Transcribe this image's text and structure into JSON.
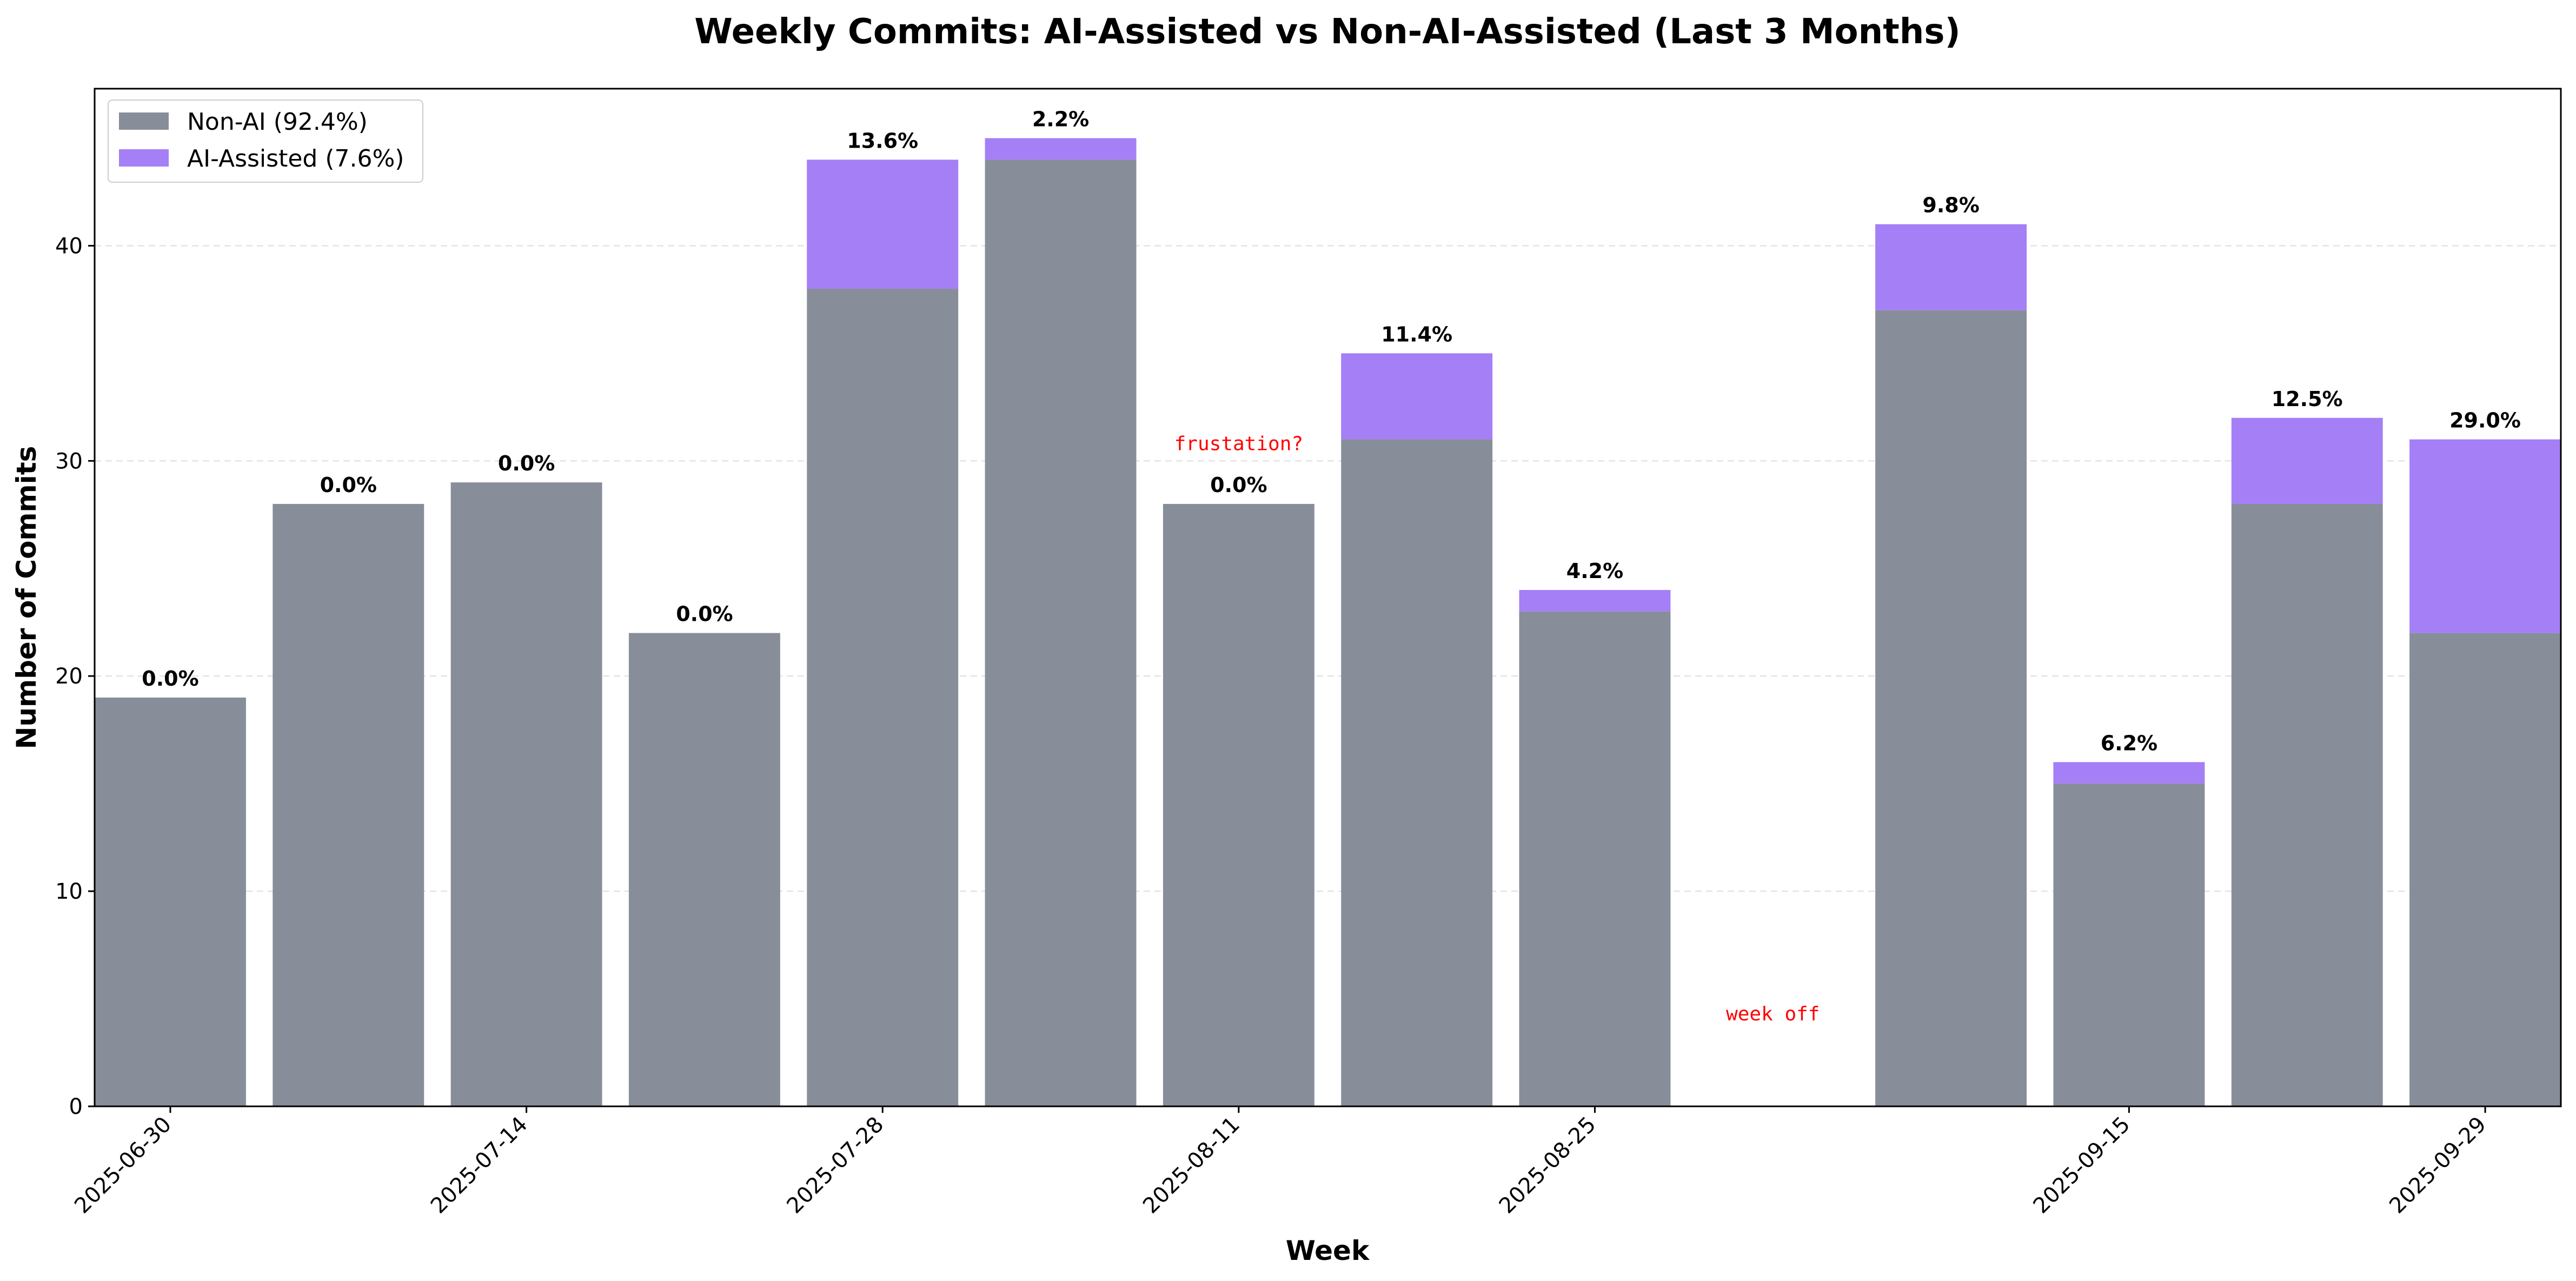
{
  "chart_data": {
    "type": "bar",
    "stacked": true,
    "title": "Weekly Commits: AI-Assisted vs Non-AI-Assisted (Last 3 Months)",
    "xlabel": "Week",
    "ylabel": "Number of Commits",
    "ylim": [
      0,
      47.3
    ],
    "yticks": [
      0,
      10,
      20,
      30,
      40
    ],
    "grid": "y-dashed",
    "legend_position": "top-left",
    "weeks": [
      "2025-06-30",
      "2025-07-07",
      "2025-07-14",
      "2025-07-21",
      "2025-07-28",
      "2025-08-04",
      "2025-08-11",
      "2025-08-18",
      "2025-08-25",
      "2025-09-01",
      "2025-09-08",
      "2025-09-15",
      "2025-09-22",
      "2025-09-29"
    ],
    "xtick_labels": [
      "2025-06-30",
      "2025-07-14",
      "2025-07-28",
      "2025-08-11",
      "2025-08-25",
      "2025-09-15",
      "2025-09-29"
    ],
    "series": [
      {
        "name": "Non-AI (92.4%)",
        "key": "non_ai",
        "color": "#888e99",
        "values": [
          19,
          28,
          29,
          22,
          38,
          44,
          28,
          31,
          23,
          0,
          37,
          15,
          28,
          22
        ]
      },
      {
        "name": "AI-Assisted (7.6%)",
        "key": "ai",
        "color": "#a47ff5",
        "values": [
          0,
          0,
          0,
          0,
          6,
          1,
          0,
          4,
          1,
          0,
          4,
          1,
          4,
          9
        ]
      }
    ],
    "data_labels": [
      "0.0%",
      "0.0%",
      "0.0%",
      "0.0%",
      "13.6%",
      "2.2%",
      "0.0%",
      "11.4%",
      "4.2%",
      "",
      "9.8%",
      "6.2%",
      "12.5%",
      "29.0%"
    ],
    "annotations": [
      {
        "text": "frustation?",
        "week": "2025-08-11",
        "y": 30.8,
        "color": "#ff0000"
      },
      {
        "text": "week off",
        "week": "2025-09-01",
        "y": 4.3,
        "color": "#ff0000"
      }
    ]
  }
}
